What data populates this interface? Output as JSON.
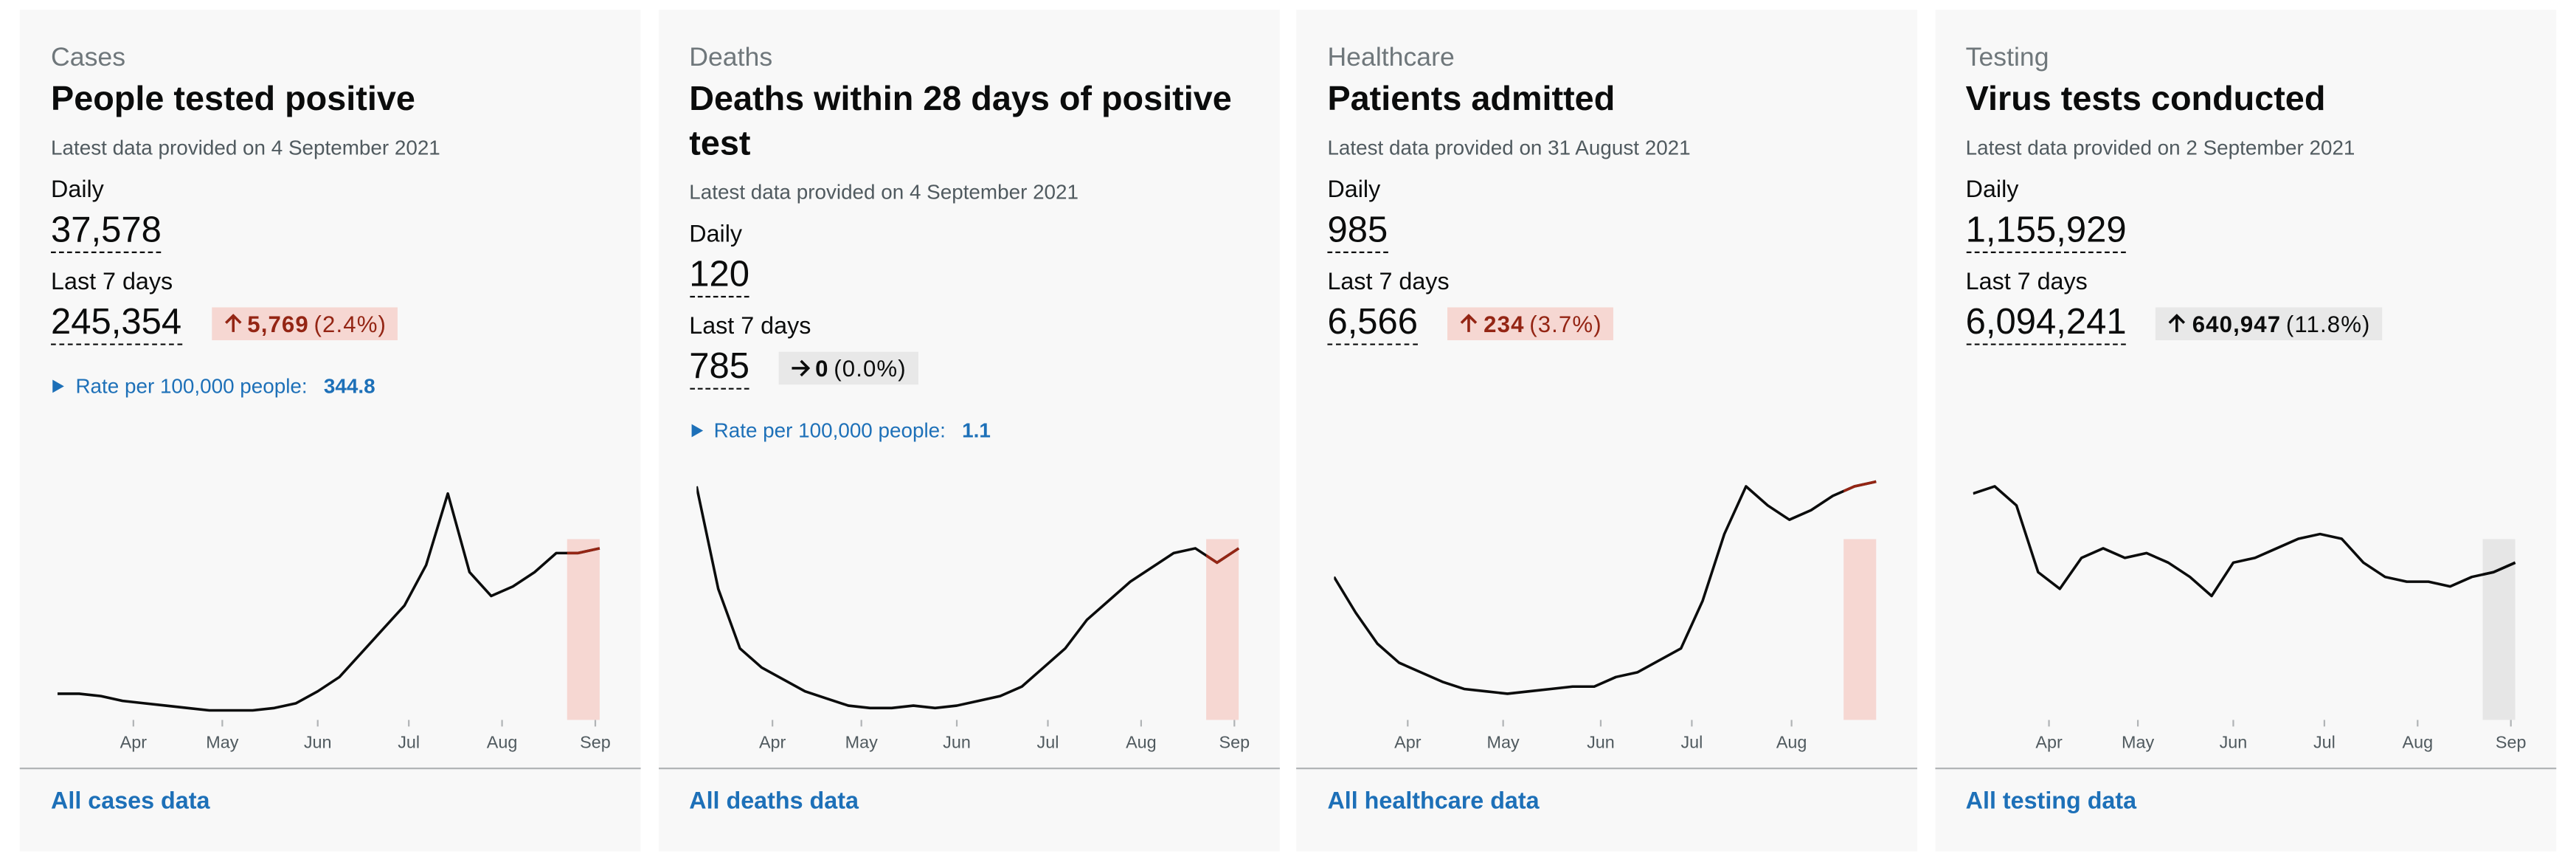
{
  "cards": [
    {
      "category": "Cases",
      "title": "People tested positive",
      "latest": "Latest data provided on 4 September 2021",
      "daily_label": "Daily",
      "daily_value": "37,578",
      "week_label": "Last 7 days",
      "week_value": "245,354",
      "change": {
        "value": "5,769",
        "percent": "(2.4%)",
        "direction": "up",
        "color": "#942514",
        "background": "#f6d7d2"
      },
      "rate": {
        "label": "Rate per 100,000 people:",
        "value": "344.8"
      },
      "link": "All cases data",
      "chart": {
        "type": "line",
        "xlim": [
          0,
          25
        ],
        "ylim": [
          0,
          100
        ],
        "values": [
          11,
          11,
          10,
          8,
          7,
          6,
          5,
          4,
          4,
          4,
          5,
          7,
          12,
          18,
          28,
          38,
          48,
          65,
          95,
          62,
          52,
          56,
          62,
          70,
          70,
          72
        ],
        "xticks": [
          {
            "value": 3.5,
            "label": "Apr"
          },
          {
            "value": 7.6,
            "label": "May"
          },
          {
            "value": 12,
            "label": "Jun"
          },
          {
            "value": 16.2,
            "label": "Jul"
          },
          {
            "value": 20.5,
            "label": "Aug"
          },
          {
            "value": 24.8,
            "label": "Sep"
          }
        ],
        "highlight_from": 23.5,
        "color": "#0b0c0c",
        "highlight_color": "#942514",
        "highlight_fill": "#f6d7d2"
      }
    },
    {
      "category": "Deaths",
      "title": "Deaths within 28 days of positive test",
      "latest": "Latest data provided on 4 September 2021",
      "daily_label": "Daily",
      "daily_value": "120",
      "week_label": "Last 7 days",
      "week_value": "785",
      "change": {
        "value": "0",
        "percent": "(0.0%)",
        "direction": "flat",
        "color": "#0b0c0c",
        "background": "#e8e8e8"
      },
      "rate": {
        "label": "Rate per 100,000 people:",
        "value": "1.1"
      },
      "link": "All deaths data",
      "chart": {
        "type": "line",
        "xlim": [
          0,
          25
        ],
        "ylim": [
          0,
          100
        ],
        "values": [
          98,
          55,
          30,
          22,
          17,
          12,
          9,
          6,
          5,
          5,
          6,
          5,
          6,
          8,
          10,
          14,
          22,
          30,
          42,
          50,
          58,
          64,
          70,
          72,
          66,
          72
        ],
        "xticks": [
          {
            "value": 3.5,
            "label": "Apr"
          },
          {
            "value": 7.6,
            "label": "May"
          },
          {
            "value": 12,
            "label": "Jun"
          },
          {
            "value": 16.2,
            "label": "Jul"
          },
          {
            "value": 20.5,
            "label": "Aug"
          },
          {
            "value": 24.8,
            "label": "Sep"
          }
        ],
        "highlight_from": 23.5,
        "color": "#0b0c0c",
        "highlight_color": "#942514",
        "highlight_fill": "#f6d7d2"
      }
    },
    {
      "category": "Healthcare",
      "title": "Patients admitted",
      "latest": "Latest data provided on 31 August 2021",
      "daily_label": "Daily",
      "daily_value": "985",
      "week_label": "Last 7 days",
      "week_value": "6,566",
      "change": {
        "value": "234",
        "percent": "(3.7%)",
        "direction": "up",
        "color": "#942514",
        "background": "#f6d7d2"
      },
      "link": "All healthcare data",
      "chart": {
        "type": "line",
        "xlim": [
          0,
          25
        ],
        "ylim": [
          0,
          100
        ],
        "values": [
          60,
          45,
          32,
          24,
          20,
          16,
          13,
          12,
          11,
          12,
          13,
          14,
          14,
          18,
          20,
          25,
          30,
          50,
          78,
          98,
          90,
          84,
          88,
          94,
          98,
          100
        ],
        "xticks": [
          {
            "value": 3.4,
            "label": "Apr"
          },
          {
            "value": 7.8,
            "label": "May"
          },
          {
            "value": 12.3,
            "label": "Jun"
          },
          {
            "value": 16.5,
            "label": "Jul"
          },
          {
            "value": 21.1,
            "label": "Aug"
          }
        ],
        "highlight_from": 23.5,
        "color": "#0b0c0c",
        "highlight_color": "#942514",
        "highlight_fill": "#f6d7d2"
      }
    },
    {
      "category": "Testing",
      "title": "Virus tests conducted",
      "latest": "Latest data provided on 2 September 2021",
      "daily_label": "Daily",
      "daily_value": "1,155,929",
      "week_label": "Last 7 days",
      "week_value": "6,094,241",
      "change": {
        "value": "640,947",
        "percent": "(11.8%)",
        "direction": "up",
        "color": "#0b0c0c",
        "background": "#e8e8e8"
      },
      "link": "All testing data",
      "chart": {
        "type": "line",
        "xlim": [
          0,
          25
        ],
        "ylim": [
          0,
          100
        ],
        "values": [
          95,
          98,
          90,
          62,
          55,
          68,
          72,
          68,
          70,
          66,
          60,
          52,
          66,
          68,
          72,
          76,
          78,
          76,
          66,
          60,
          58,
          58,
          56,
          60,
          62,
          66
        ],
        "xticks": [
          {
            "value": 3.5,
            "label": "Apr"
          },
          {
            "value": 7.6,
            "label": "May"
          },
          {
            "value": 12,
            "label": "Jun"
          },
          {
            "value": 16.2,
            "label": "Jul"
          },
          {
            "value": 20.5,
            "label": "Aug"
          },
          {
            "value": 24.8,
            "label": "Sep"
          }
        ],
        "highlight_from": 23.5,
        "color": "#0b0c0c",
        "highlight_color": "#0b0c0c",
        "highlight_fill": "#e6e6e6"
      }
    }
  ]
}
